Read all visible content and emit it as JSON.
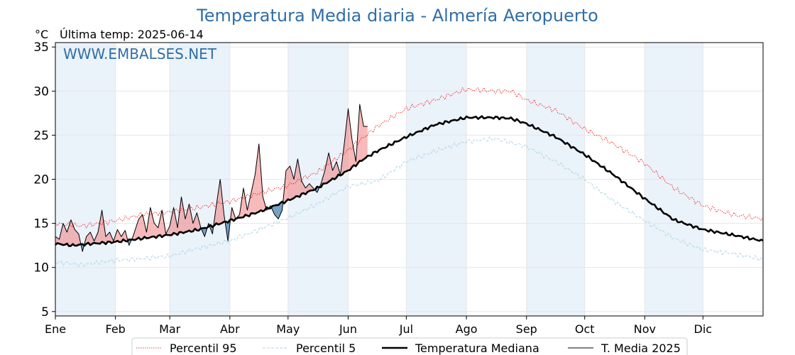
{
  "header": {
    "title": "Temperatura Media diaria - Almería Aeropuerto",
    "unit": "°C",
    "last_temp": "Última temp: 2025-06-14",
    "watermark": "WWW.EMBALSES.NET"
  },
  "colors": {
    "title": "#2f6ea8",
    "p95": "#ff0000",
    "p5": "#add8e6",
    "median": "#000000",
    "media2025": "#000000",
    "above_fill": "#f08080",
    "below_fill": "#4682b4",
    "month_band": "#eaf2fa"
  },
  "chart_data": {
    "type": "line",
    "x_unit": "day of year",
    "x_ticks": [
      {
        "day": 1,
        "label": "Ene"
      },
      {
        "day": 32,
        "label": "Feb"
      },
      {
        "day": 60,
        "label": "Mar"
      },
      {
        "day": 91,
        "label": "Abr"
      },
      {
        "day": 121,
        "label": "May"
      },
      {
        "day": 152,
        "label": "Jun"
      },
      {
        "day": 182,
        "label": "Jul"
      },
      {
        "day": 213,
        "label": "Ago"
      },
      {
        "day": 244,
        "label": "Sep"
      },
      {
        "day": 274,
        "label": "Oct"
      },
      {
        "day": 305,
        "label": "Nov"
      },
      {
        "day": 335,
        "label": "Dic"
      }
    ],
    "xlim": [
      1,
      366
    ],
    "y_ticks": [
      5,
      10,
      15,
      20,
      25,
      30,
      35
    ],
    "ylim": [
      4.5,
      35.5
    ],
    "grid": true,
    "legend_position": "bottom",
    "series": [
      {
        "name": "Percentil 95",
        "style": "dotted-thin",
        "color": "#ff0000",
        "points": [
          [
            1,
            15.0
          ],
          [
            15,
            14.7
          ],
          [
            32,
            15.3
          ],
          [
            46,
            16.0
          ],
          [
            60,
            16.3
          ],
          [
            75,
            16.8
          ],
          [
            91,
            17.5
          ],
          [
            106,
            18.4
          ],
          [
            121,
            19.3
          ],
          [
            136,
            20.8
          ],
          [
            152,
            23.3
          ],
          [
            167,
            26.0
          ],
          [
            182,
            28.0
          ],
          [
            197,
            29.0
          ],
          [
            213,
            30.2
          ],
          [
            228,
            30.0
          ],
          [
            236,
            30.0
          ],
          [
            244,
            29.0
          ],
          [
            259,
            27.8
          ],
          [
            274,
            25.7
          ],
          [
            289,
            24.0
          ],
          [
            305,
            21.8
          ],
          [
            320,
            19.0
          ],
          [
            335,
            17.0
          ],
          [
            350,
            16.0
          ],
          [
            366,
            15.5
          ]
        ]
      },
      {
        "name": "Percentil 5",
        "style": "dashed",
        "color": "#add8e6",
        "points": [
          [
            1,
            10.6
          ],
          [
            15,
            10.3
          ],
          [
            32,
            10.8
          ],
          [
            46,
            11.0
          ],
          [
            60,
            11.3
          ],
          [
            75,
            12.2
          ],
          [
            91,
            13.0
          ],
          [
            106,
            14.3
          ],
          [
            121,
            15.6
          ],
          [
            136,
            17.2
          ],
          [
            152,
            19.2
          ],
          [
            167,
            19.8
          ],
          [
            182,
            22.0
          ],
          [
            197,
            23.2
          ],
          [
            213,
            24.3
          ],
          [
            228,
            24.6
          ],
          [
            244,
            23.7
          ],
          [
            259,
            22.0
          ],
          [
            274,
            20.0
          ],
          [
            289,
            17.5
          ],
          [
            305,
            15.3
          ],
          [
            320,
            13.3
          ],
          [
            335,
            12.0
          ],
          [
            350,
            11.6
          ],
          [
            366,
            10.9
          ]
        ]
      },
      {
        "name": "Temperatura Mediana",
        "style": "solid-thick",
        "color": "#000000",
        "points": [
          [
            1,
            12.7
          ],
          [
            10,
            12.5
          ],
          [
            20,
            12.7
          ],
          [
            32,
            12.9
          ],
          [
            46,
            13.3
          ],
          [
            60,
            13.7
          ],
          [
            75,
            14.3
          ],
          [
            91,
            15.3
          ],
          [
            106,
            16.3
          ],
          [
            121,
            17.6
          ],
          [
            136,
            19.0
          ],
          [
            152,
            21.0
          ],
          [
            160,
            22.3
          ],
          [
            167,
            23.2
          ],
          [
            182,
            24.8
          ],
          [
            197,
            26.2
          ],
          [
            213,
            27.0
          ],
          [
            228,
            27.0
          ],
          [
            236,
            26.9
          ],
          [
            244,
            26.3
          ],
          [
            259,
            24.8
          ],
          [
            274,
            22.8
          ],
          [
            289,
            20.5
          ],
          [
            305,
            17.8
          ],
          [
            320,
            15.4
          ],
          [
            335,
            14.3
          ],
          [
            350,
            13.7
          ],
          [
            366,
            13.0
          ]
        ]
      },
      {
        "name": "T. Media 2025",
        "style": "solid-thin",
        "color": "#000000",
        "points": [
          [
            1,
            13.5
          ],
          [
            3,
            13.2
          ],
          [
            5,
            15.0
          ],
          [
            7,
            14.0
          ],
          [
            9,
            15.4
          ],
          [
            11,
            14.3
          ],
          [
            13,
            13.8
          ],
          [
            15,
            11.8
          ],
          [
            17,
            13.5
          ],
          [
            19,
            14.0
          ],
          [
            21,
            13.0
          ],
          [
            23,
            14.0
          ],
          [
            25,
            16.5
          ],
          [
            27,
            13.5
          ],
          [
            29,
            14.0
          ],
          [
            31,
            13.0
          ],
          [
            33,
            14.3
          ],
          [
            35,
            13.5
          ],
          [
            37,
            14.2
          ],
          [
            39,
            12.5
          ],
          [
            41,
            13.5
          ],
          [
            44,
            15.5
          ],
          [
            46,
            16.0
          ],
          [
            48,
            14.0
          ],
          [
            50,
            16.8
          ],
          [
            52,
            15.0
          ],
          [
            54,
            14.5
          ],
          [
            56,
            16.5
          ],
          [
            58,
            13.8
          ],
          [
            60,
            14.7
          ],
          [
            62,
            16.8
          ],
          [
            64,
            14.5
          ],
          [
            66,
            18.0
          ],
          [
            68,
            15.5
          ],
          [
            70,
            17.2
          ],
          [
            72,
            15.0
          ],
          [
            74,
            16.2
          ],
          [
            76,
            14.5
          ],
          [
            78,
            13.5
          ],
          [
            80,
            15.0
          ],
          [
            82,
            13.8
          ],
          [
            84,
            17.0
          ],
          [
            86,
            20.0
          ],
          [
            88,
            16.0
          ],
          [
            90,
            13.0
          ],
          [
            92,
            16.8
          ],
          [
            94,
            15.5
          ],
          [
            96,
            16.0
          ],
          [
            98,
            19.0
          ],
          [
            100,
            16.5
          ],
          [
            102,
            18.5
          ],
          [
            104,
            20.5
          ],
          [
            106,
            24.0
          ],
          [
            108,
            18.0
          ],
          [
            110,
            16.5
          ],
          [
            112,
            17.0
          ],
          [
            114,
            16.0
          ],
          [
            116,
            15.5
          ],
          [
            118,
            16.5
          ],
          [
            120,
            21.0
          ],
          [
            122,
            21.5
          ],
          [
            124,
            20.0
          ],
          [
            126,
            22.3
          ],
          [
            128,
            19.8
          ],
          [
            130,
            19.0
          ],
          [
            132,
            19.5
          ],
          [
            134,
            19.0
          ],
          [
            136,
            18.5
          ],
          [
            138,
            19.5
          ],
          [
            140,
            21.0
          ],
          [
            142,
            23.0
          ],
          [
            144,
            21.0
          ],
          [
            146,
            22.0
          ],
          [
            148,
            20.5
          ],
          [
            150,
            24.0
          ],
          [
            152,
            28.0
          ],
          [
            154,
            24.5
          ],
          [
            156,
            22.0
          ],
          [
            158,
            28.5
          ],
          [
            160,
            26.0
          ],
          [
            162,
            26.0
          ]
        ]
      }
    ],
    "legend": [
      "Percentil 95",
      "Percentil 5",
      "Temperatura Mediana",
      "T. Media 2025"
    ]
  }
}
